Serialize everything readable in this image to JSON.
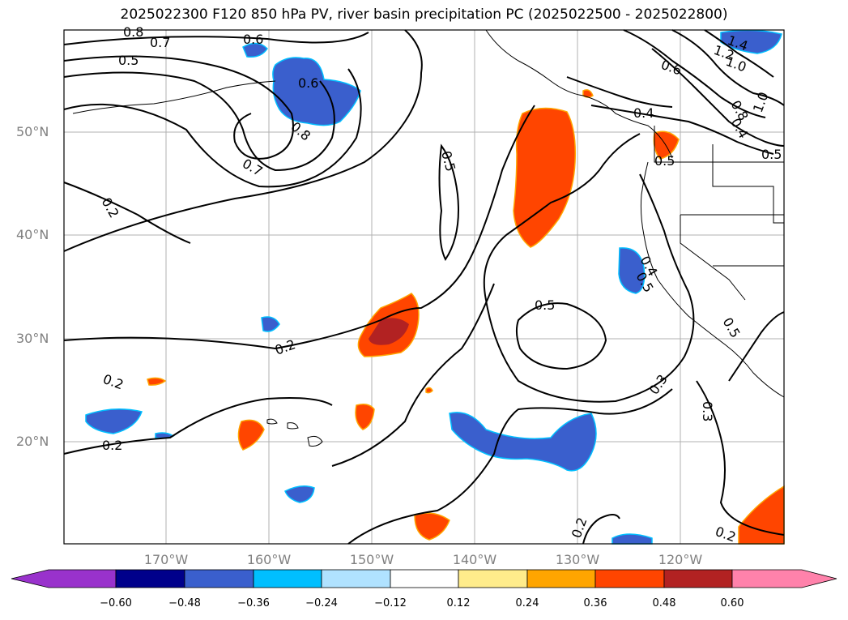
{
  "title": "2025022300 F120 850 hPa PV, river basin precipitation PC (2025022500 - 2025022800)",
  "map": {
    "lat_labels": [
      "50°N",
      "40°N",
      "30°N",
      "20°N"
    ],
    "lon_labels": [
      "170°W",
      "160°W",
      "150°W",
      "140°W",
      "130°W",
      "120°W"
    ],
    "contour_labels": [
      "0.8",
      "0.7",
      "0.6",
      "0.5",
      "0.6",
      "0.8",
      "0.7",
      "0.2",
      "0.5",
      "0.2",
      "0.2",
      "0.2",
      "0.5",
      "0.4",
      "0.3",
      "0.3",
      "0.2",
      "0.2",
      "1.4",
      "1.2",
      "1.0",
      "0.6",
      "0.8",
      "0.4",
      "1.0",
      "0.5",
      "0.5",
      "0.5",
      "0.4",
      "0.5"
    ],
    "colors": {
      "coast": "#000000",
      "grid": "#b0b0b0",
      "neg_strong": "#3a5fcd",
      "neg_light": "#00bfff",
      "pos_strong": "#ff4500",
      "pos_dark": "#b22222",
      "pos_light": "#ffa500"
    }
  },
  "colorbar": {
    "bins": [
      "#9932cc",
      "#00008b",
      "#3a5fcd",
      "#00bfff",
      "#b0e2ff",
      "#ffffff",
      "#ffec8b",
      "#ffa500",
      "#ff4500",
      "#b22222",
      "#ff82ab"
    ],
    "ticks": [
      "−0.60",
      "−0.48",
      "−0.36",
      "−0.24",
      "−0.12",
      "0.12",
      "0.24",
      "0.36",
      "0.48",
      "0.60"
    ]
  }
}
